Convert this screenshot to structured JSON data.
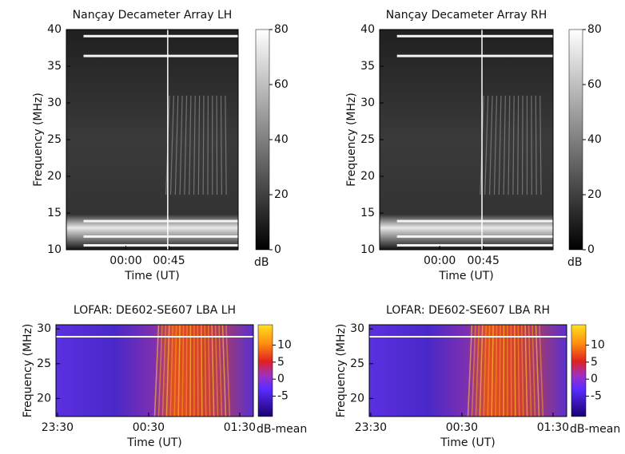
{
  "chart_data": [
    {
      "type": "spectrogram",
      "title": "Nançay Decameter Array LH",
      "xlabel": "Time (UT)",
      "ylabel": "Frequency (MHz)",
      "xlim": [
        -62,
        117
      ],
      "xticks": [
        {
          "value": 0,
          "label": "00:00"
        },
        {
          "value": 45,
          "label": "00:45"
        }
      ],
      "ylim": [
        10,
        40
      ],
      "yticks": [
        10,
        15,
        20,
        25,
        30,
        35,
        40
      ],
      "colormap": "gray",
      "colorbar": {
        "label": "dB",
        "lim": [
          0,
          80
        ],
        "ticks": [
          0,
          20,
          40,
          60,
          80
        ]
      }
    },
    {
      "type": "spectrogram",
      "title": "Nançay Decameter Array RH",
      "xlabel": "Time (UT)",
      "ylabel": "Frequency (MHz)",
      "xlim": [
        -62,
        117
      ],
      "xticks": [
        {
          "value": 0,
          "label": "00:00"
        },
        {
          "value": 45,
          "label": "00:45"
        }
      ],
      "ylim": [
        10,
        40
      ],
      "yticks": [
        10,
        15,
        20,
        25,
        30,
        35,
        40
      ],
      "colormap": "gray",
      "colorbar": {
        "label": "dB",
        "lim": [
          0,
          80
        ],
        "ticks": [
          0,
          20,
          40,
          60,
          80
        ]
      }
    },
    {
      "type": "spectrogram",
      "title": "LOFAR: DE602-SE607 LBA LH",
      "xlabel": "Time (UT)",
      "ylabel": "Frequency (MHz)",
      "xlim": [
        -31,
        99
      ],
      "xticks": [
        {
          "value": -30,
          "label": "23:30"
        },
        {
          "value": 30,
          "label": "00:30"
        },
        {
          "value": 90,
          "label": "01:30"
        }
      ],
      "ylim": [
        17.4,
        30.6
      ],
      "yticks": [
        20,
        25,
        30
      ],
      "colormap": "plasma",
      "colorbar": {
        "label": "dB-mean",
        "lim": [
          -11,
          16
        ],
        "ticks": [
          -5,
          0,
          5,
          10
        ]
      }
    },
    {
      "type": "spectrogram",
      "title": "LOFAR: DE602-SE607 LBA RH",
      "xlabel": "Time (UT)",
      "ylabel": "Frequency (MHz)",
      "xlim": [
        -31,
        99
      ],
      "xticks": [
        {
          "value": -30,
          "label": "23:30"
        },
        {
          "value": 30,
          "label": "00:30"
        },
        {
          "value": 90,
          "label": "01:30"
        }
      ],
      "ylim": [
        17.4,
        30.6
      ],
      "yticks": [
        20,
        25,
        30
      ],
      "colormap": "plasma",
      "colorbar": {
        "label": "dB-mean",
        "lim": [
          -11,
          16
        ],
        "ticks": [
          -5,
          0,
          5,
          10
        ]
      }
    }
  ]
}
